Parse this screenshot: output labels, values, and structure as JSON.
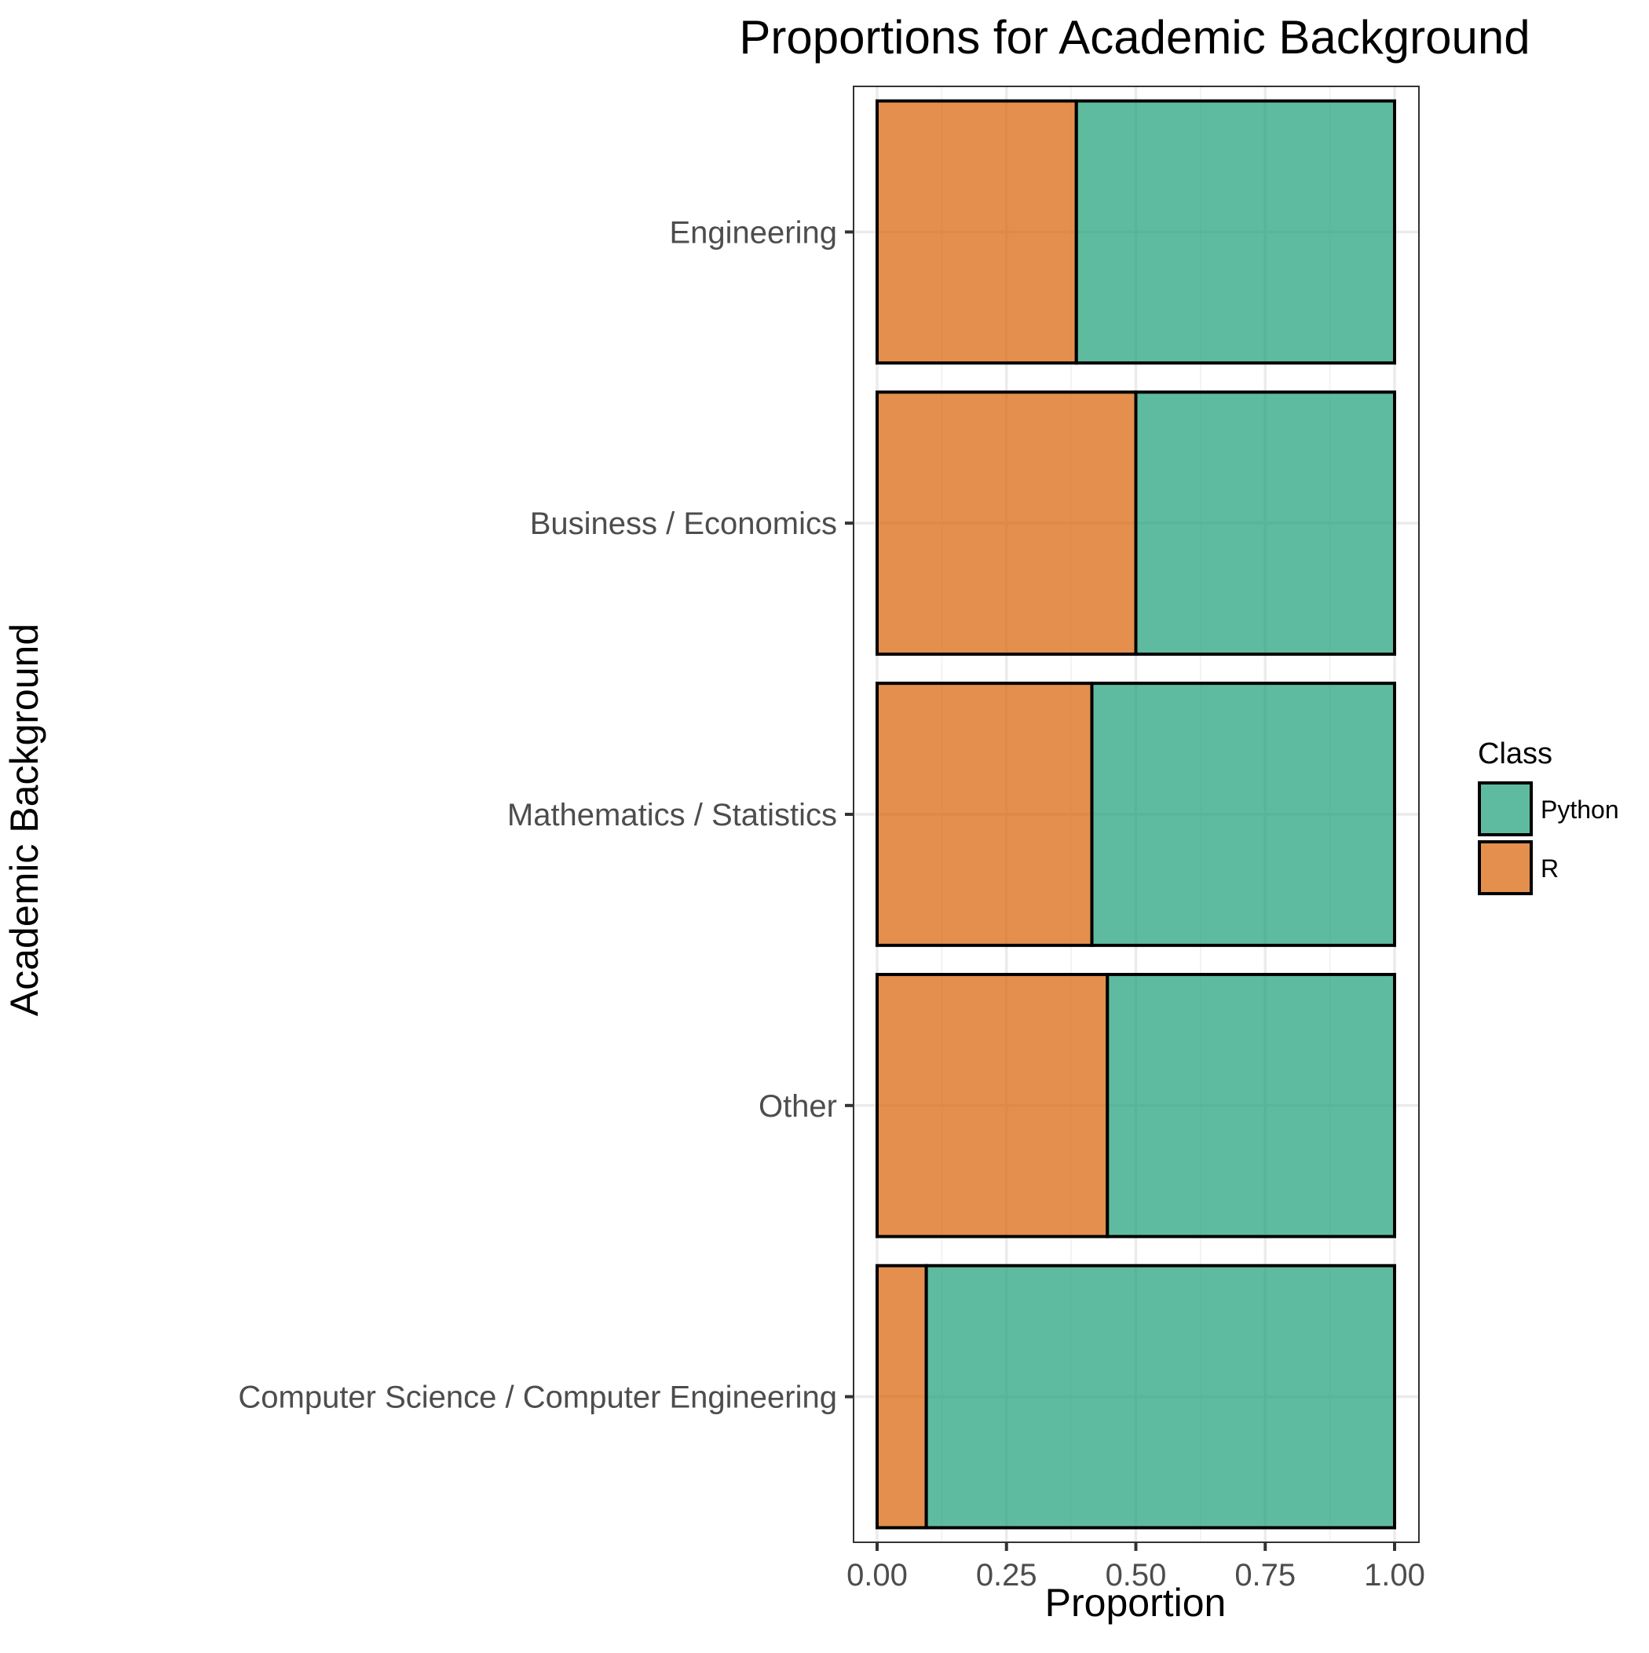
{
  "chart_data": {
    "type": "bar",
    "orientation": "horizontal",
    "stacked": true,
    "title": "Proportions for Academic Background",
    "xlabel": "Proportion",
    "ylabel": "Academic Background",
    "xlim": [
      0,
      1
    ],
    "x_ticks": [
      "0.00",
      "0.25",
      "0.50",
      "0.75",
      "1.00"
    ],
    "x_tick_values": [
      0,
      0.25,
      0.5,
      0.75,
      1.0
    ],
    "grid": true,
    "legend": {
      "title": "Class",
      "position": "right"
    },
    "categories": [
      "Engineering",
      "Business / Economics",
      "Mathematics / Statistics",
      "Other",
      "Computer Science / Computer Engineering"
    ],
    "series": [
      {
        "name": "R",
        "color": "#D95F02",
        "values": [
          0.385,
          0.5,
          0.415,
          0.445,
          0.095
        ]
      },
      {
        "name": "Python",
        "color": "#1B9E77",
        "values": [
          0.615,
          0.5,
          0.585,
          0.555,
          0.905
        ]
      }
    ],
    "bar_opacity": 0.7,
    "legend_order": [
      "Python",
      "R"
    ]
  }
}
